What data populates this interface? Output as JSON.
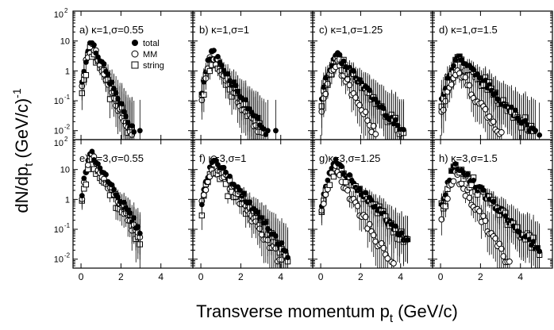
{
  "figure": {
    "xlabel_main": "Transverse momentum p",
    "xlabel_sub": "t",
    "xlabel_tail": " (GeV/c)",
    "ylabel_main": "dN/dp",
    "ylabel_sub": "t",
    "ylabel_tail": " (GeV/c)",
    "ylabel_sup": "-1"
  },
  "legend": {
    "placement": "inside panel a, upper-right",
    "entries": [
      {
        "name": "total",
        "marker": "filled-circle"
      },
      {
        "name": "MM",
        "marker": "open-circle"
      },
      {
        "name": "string",
        "marker": "open-square"
      }
    ]
  },
  "axes": {
    "x_ticks": [
      "0",
      "2",
      "4"
    ],
    "x_range": [
      -0.4,
      5.6
    ],
    "y_range_log10": [
      -2.3,
      2.0
    ],
    "y_ticks": [
      {
        "mant": "10",
        "exp": "2",
        "v": 2
      },
      {
        "mant": "10",
        "exp": "",
        "v": 1
      },
      {
        "mant": "1",
        "exp": "",
        "v": 0
      },
      {
        "mant": "10",
        "exp": "-1",
        "v": -1
      },
      {
        "mant": "10",
        "exp": "-2",
        "v": -2
      }
    ],
    "scale": "log"
  },
  "chart_data": [
    {
      "type": "scatter",
      "panel": "a",
      "label": "a) κ=1,σ=0.55",
      "peak_x": 0.55,
      "peak": 10,
      "total_slope": 3.4,
      "mm_slope": 3.6,
      "mm_frac": 0.7,
      "x_end": 3.0,
      "series": [
        {
          "name": "total"
        },
        {
          "name": "MM"
        },
        {
          "name": "string"
        }
      ]
    },
    {
      "type": "scatter",
      "panel": "b",
      "label": "b) κ=1,σ=1",
      "peak_x": 0.6,
      "peak": 4.5,
      "total_slope": 2.4,
      "mm_slope": 2.7,
      "mm_frac": 0.8,
      "x_end": 4.2,
      "series": [
        {
          "name": "total"
        },
        {
          "name": "MM"
        },
        {
          "name": "string"
        }
      ]
    },
    {
      "type": "scatter",
      "panel": "c",
      "label": "c) κ=1,σ=1.25",
      "peak_x": 0.8,
      "peak": 3.5,
      "total_slope": 1.8,
      "mm_slope": 2.8,
      "mm_frac": 0.5,
      "x_end": 4.2,
      "series": [
        {
          "name": "total"
        },
        {
          "name": "MM"
        },
        {
          "name": "string"
        }
      ]
    },
    {
      "type": "scatter",
      "panel": "d",
      "label": "d) κ=1,σ=1.5",
      "peak_x": 0.9,
      "peak": 3.0,
      "total_slope": 1.55,
      "mm_slope": 2.4,
      "mm_frac": 0.35,
      "x_end": 5.0,
      "series": [
        {
          "name": "total"
        },
        {
          "name": "MM"
        },
        {
          "name": "string"
        }
      ]
    },
    {
      "type": "scatter",
      "panel": "e",
      "label": "e) κ=3,σ=0.55",
      "peak_x": 0.55,
      "peak": 35,
      "total_slope": 2.5,
      "mm_slope": 2.7,
      "mm_frac": 0.8,
      "x_end": 3.0,
      "series": [
        {
          "name": "total"
        },
        {
          "name": "MM"
        },
        {
          "name": "string"
        }
      ]
    },
    {
      "type": "scatter",
      "panel": "f",
      "label": "f) κ=3,σ=1",
      "peak_x": 0.7,
      "peak": 22,
      "total_slope": 2.0,
      "mm_slope": 2.3,
      "mm_frac": 0.8,
      "x_end": 4.4,
      "series": [
        {
          "name": "total"
        },
        {
          "name": "MM"
        },
        {
          "name": "string"
        }
      ]
    },
    {
      "type": "scatter",
      "panel": "g",
      "label": "g)κ=3,σ=1.25",
      "peak_x": 0.7,
      "peak": 18,
      "total_slope": 1.7,
      "mm_slope": 2.6,
      "mm_frac": 0.6,
      "x_end": 4.4,
      "series": [
        {
          "name": "total"
        },
        {
          "name": "MM"
        },
        {
          "name": "string"
        }
      ]
    },
    {
      "type": "scatter",
      "panel": "h",
      "label": "h) κ=3,σ=1.5",
      "peak_x": 0.8,
      "peak": 14,
      "total_slope": 1.6,
      "mm_slope": 2.6,
      "mm_frac": 0.45,
      "x_end": 5.0,
      "series": [
        {
          "name": "total"
        },
        {
          "name": "MM"
        },
        {
          "name": "string"
        }
      ]
    }
  ]
}
